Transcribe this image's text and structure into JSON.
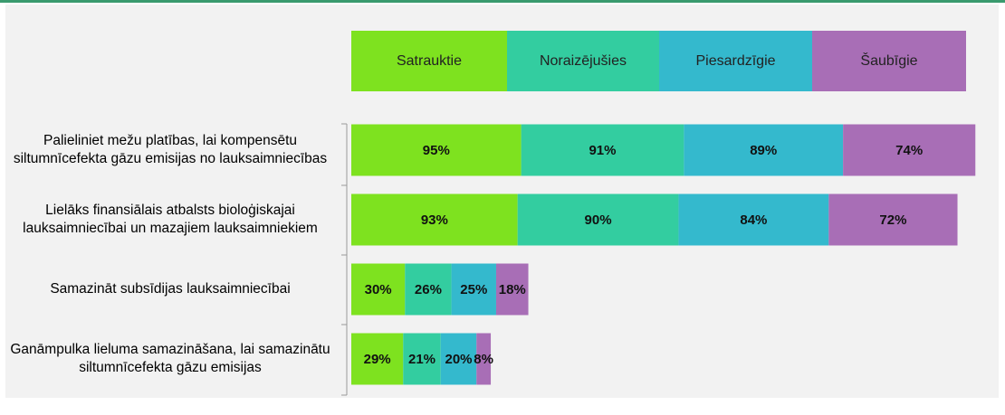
{
  "chart_data": {
    "type": "stacked-bar-horizontal",
    "categories": [
      "Palieliniet mežu platības, lai kompensētu siltumnīcefekta gāzu emisijas no lauksaimniecības",
      "Lielāks finansiālais atbalsts bioloģiskajai lauksaimniecībai un mazajiem lauksaimniekiem",
      "Samazināt subsīdijas lauksaimniecībai",
      "Ganāmpulka lieluma samazināšana, lai samazinātu siltumnīcefekta gāzu emisijas"
    ],
    "series": [
      {
        "name": "Satrauktie",
        "color": "#7ee21f",
        "values": [
          95,
          93,
          30,
          29
        ],
        "value_labels": [
          "95%",
          "93%",
          "30%",
          "29%"
        ]
      },
      {
        "name": "Noraizējušies",
        "color": "#33cda0",
        "values": [
          91,
          90,
          26,
          21
        ],
        "value_labels": [
          "91%",
          "90%",
          "26%",
          "21%"
        ]
      },
      {
        "name": "Piesardzīgie",
        "color": "#34b9cd",
        "values": [
          89,
          84,
          25,
          20
        ],
        "value_labels": [
          "89%",
          "84%",
          "25%",
          "20%"
        ]
      },
      {
        "name": "Šaubīgie",
        "color": "#a86eb6",
        "values": [
          74,
          72,
          18,
          8
        ],
        "value_labels": [
          "74%",
          "72%",
          "18%",
          "8%"
        ]
      }
    ]
  }
}
